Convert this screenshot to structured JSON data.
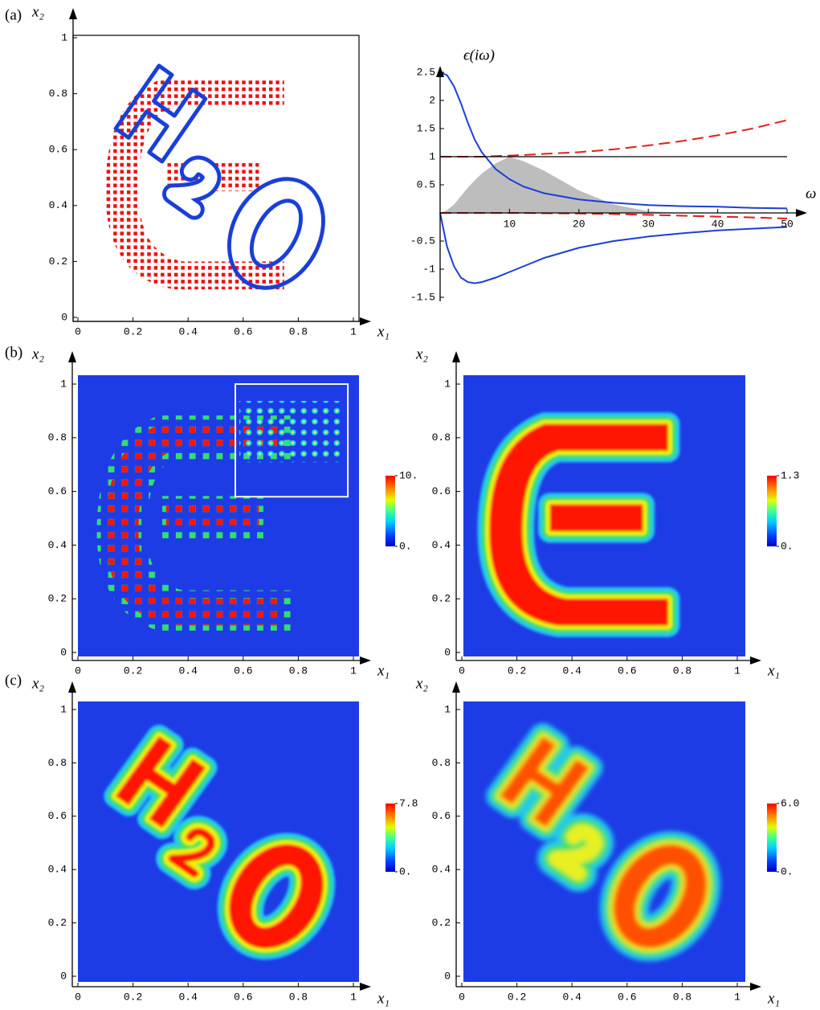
{
  "panel_labels": [
    "(a)",
    "(b)",
    "(c)"
  ],
  "chart_data": [
    {
      "type": "image",
      "xlabel": "x₁",
      "ylabel": "x₂",
      "xlim": [
        0,
        1
      ],
      "ylim": [
        0,
        1
      ],
      "xticks": [
        0,
        0.2,
        0.4,
        0.6,
        0.8,
        1
      ],
      "yticks": [
        0,
        0.2,
        0.4,
        0.6,
        0.8,
        1
      ]
    },
    {
      "type": "line",
      "xlabel": "ω",
      "ylabel": "ϵ(iω)",
      "xlim": [
        0,
        50
      ],
      "ylim": [
        -1.5,
        2.5
      ],
      "xticks": [
        10,
        20,
        30,
        40,
        50
      ],
      "yticks": [
        -1.5,
        -1,
        -0.5,
        0.5,
        1,
        1.5,
        2,
        2.5
      ],
      "hline": 1,
      "x": [
        0,
        1,
        2,
        3,
        4,
        5,
        6,
        8,
        10,
        12,
        15,
        20,
        25,
        30,
        35,
        40,
        45,
        50
      ],
      "series": [
        {
          "color": "#bdbdbd",
          "fill": true,
          "values": [
            0,
            0.05,
            0.15,
            0.3,
            0.45,
            0.58,
            0.7,
            0.88,
            1.0,
            0.92,
            0.75,
            0.4,
            0.15,
            0.03,
            0,
            0,
            0,
            0
          ]
        },
        {
          "color": "#1a3fd8",
          "values": [
            2.5,
            2.45,
            2.25,
            1.95,
            1.6,
            1.3,
            1.08,
            0.78,
            0.6,
            0.47,
            0.35,
            0.24,
            0.18,
            0.14,
            0.12,
            0.11,
            0.09,
            0.08
          ]
        },
        {
          "color": "#1a3fd8",
          "values": [
            0,
            -0.6,
            -0.95,
            -1.15,
            -1.23,
            -1.25,
            -1.23,
            -1.15,
            -1.05,
            -0.95,
            -0.8,
            -0.62,
            -0.5,
            -0.42,
            -0.36,
            -0.31,
            -0.28,
            -0.25
          ]
        },
        {
          "color": "#e0201a",
          "style": "dashed",
          "values": [
            1,
            1,
            1,
            1,
            1,
            1,
            1,
            1.01,
            1.02,
            1.03,
            1.05,
            1.08,
            1.13,
            1.2,
            1.28,
            1.38,
            1.5,
            1.65
          ]
        },
        {
          "color": "#e0201a",
          "style": "dashed",
          "values": [
            0,
            0,
            0,
            0,
            0,
            0,
            0,
            0,
            0,
            0,
            -0.005,
            -0.01,
            -0.02,
            -0.035,
            -0.05,
            -0.065,
            -0.08,
            -0.1
          ]
        }
      ]
    },
    {
      "type": "heatmap",
      "colormap": "jet",
      "xlabel": "x₁",
      "ylabel": "x₂",
      "xlim": [
        0,
        1
      ],
      "ylim": [
        0,
        1
      ],
      "xticks": [
        0,
        0.2,
        0.4,
        0.6,
        0.8,
        1
      ],
      "yticks": [
        0,
        0.2,
        0.4,
        0.6,
        0.8,
        1
      ],
      "colorbar": {
        "lim": [
          0,
          10
        ],
        "ticks": [
          {
            "value": 0,
            "label": "0."
          },
          {
            "value": 10,
            "label": "10."
          }
        ]
      }
    },
    {
      "type": "heatmap",
      "colormap": "jet",
      "xlabel": "x₁",
      "ylabel": "x₂",
      "xlim": [
        0,
        1
      ],
      "ylim": [
        0,
        1
      ],
      "xticks": [
        0,
        0.2,
        0.4,
        0.6,
        0.8,
        1
      ],
      "yticks": [
        0,
        0.2,
        0.4,
        0.6,
        0.8,
        1
      ],
      "colorbar": {
        "lim": [
          0,
          1.3
        ],
        "ticks": [
          {
            "value": 0,
            "label": "0."
          },
          1.3
        ]
      }
    },
    {
      "type": "heatmap",
      "colormap": "jet",
      "xlabel": "x₁",
      "ylabel": "x₂",
      "xlim": [
        0,
        1
      ],
      "ylim": [
        0,
        1
      ],
      "xticks": [
        0,
        0.2,
        0.4,
        0.6,
        0.8,
        1
      ],
      "yticks": [
        0,
        0.2,
        0.4,
        0.6,
        0.8,
        1
      ],
      "colorbar": {
        "lim": [
          0,
          7.8
        ],
        "ticks": [
          {
            "value": 0,
            "label": "0."
          },
          7.8
        ]
      }
    },
    {
      "type": "heatmap",
      "colormap": "jet",
      "xlabel": "x₁",
      "ylabel": "x₂",
      "xlim": [
        0,
        1
      ],
      "ylim": [
        0,
        1
      ],
      "xticks": [
        0,
        0.2,
        0.4,
        0.6,
        0.8,
        1
      ],
      "yticks": [
        0,
        0.2,
        0.4,
        0.6,
        0.8,
        1
      ],
      "colorbar": {
        "lim": [
          0,
          6
        ],
        "ticks": [
          {
            "value": 0,
            "label": "0."
          },
          {
            "value": 6,
            "label": "6.0"
          }
        ]
      }
    }
  ]
}
